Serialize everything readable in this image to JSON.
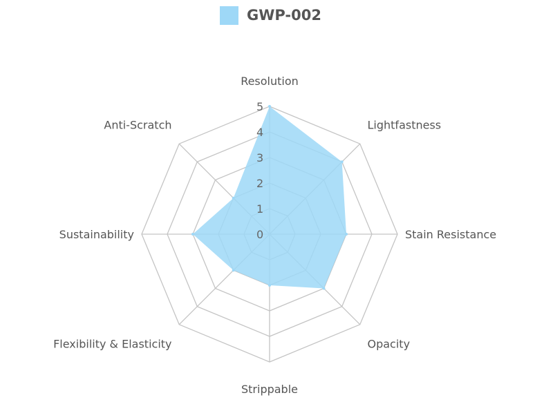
{
  "chart_data": {
    "type": "radar",
    "title": "",
    "categories": [
      "Resolution",
      "Lightfastness",
      "Stain Resistance",
      "Opacity",
      "Strippable",
      "Flexibility & Elasticity",
      "Sustainability",
      "Anti-Scratch"
    ],
    "series": [
      {
        "name": "GWP-002",
        "values": [
          5,
          4,
          3,
          3,
          2,
          2,
          3,
          2
        ]
      }
    ],
    "r_range": [
      0,
      5
    ],
    "ticks": [
      "0",
      "1",
      "2",
      "3",
      "4",
      "5"
    ],
    "legend_position": "top-center",
    "grid": true,
    "colors": {
      "fill": "#9ed8f7",
      "fill_opacity": 0.85,
      "grid": "#c4c4c4",
      "text": "#555555"
    }
  }
}
